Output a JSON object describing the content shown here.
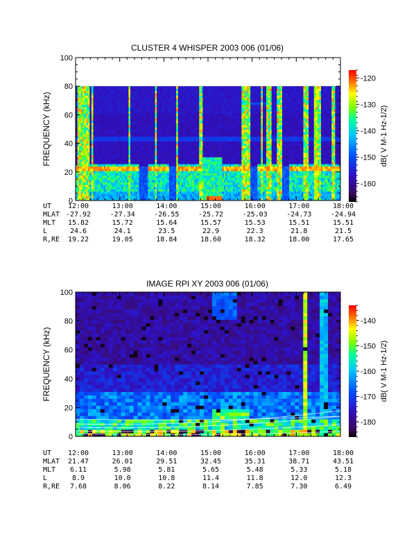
{
  "chart_data": [
    {
      "type": "heatmap",
      "title": "CLUSTER 4 WHISPER 2003 006 (01/06)",
      "ylabel": "FREQUENCY (kHz)",
      "ylim": [
        0,
        100
      ],
      "yticks": [
        "0",
        "20",
        "40",
        "60",
        "80",
        "100"
      ],
      "xticks": [
        "12:00",
        "13:00",
        "14:00",
        "15:00",
        "16:00",
        "17:00",
        "18:00"
      ],
      "data_top_khz": 80,
      "colorbar": {
        "label": "dB( V M-1 Hz-1/2)",
        "ticks": [
          "-120",
          "-130",
          "-140",
          "-150",
          "-160"
        ],
        "range": [
          -167,
          -117
        ]
      },
      "ephemeris": {
        "labels": [
          "UT",
          "MLAT",
          "MLT",
          "L",
          "R,RE"
        ],
        "rows": [
          [
            "12:00",
            "13:00",
            "14:00",
            "15:00",
            "16:00",
            "17:00",
            "18:00"
          ],
          [
            "-27.92",
            "-27.34",
            "-26.55",
            "-25.72",
            "-25.03",
            "-24.73",
            "-24.94"
          ],
          [
            "15.82",
            "15.72",
            "15.64",
            "15.57",
            "15.53",
            "15.51",
            "15.51"
          ],
          [
            "24.6",
            "24.1",
            "23.5",
            "22.9",
            "22.3",
            "21.8",
            "21.5"
          ],
          [
            "19.22",
            "19.05",
            "18.84",
            "18.60",
            "18.32",
            "18.00",
            "17.65"
          ]
        ]
      }
    },
    {
      "type": "heatmap",
      "title": "IMAGE RPI XY 2003 006 (01/06)",
      "ylabel": "FREQUENCY (kHz)",
      "ylim": [
        0,
        100
      ],
      "yticks": [
        "0",
        "20",
        "40",
        "60",
        "80",
        "100"
      ],
      "xticks": [
        "12:00",
        "13:00",
        "14:00",
        "15:00",
        "16:00",
        "17:00",
        "18:00"
      ],
      "colorbar": {
        "label": "dB( V M-1 Hz-1/2)",
        "ticks": [
          "-140",
          "-150",
          "-160",
          "-170",
          "-180"
        ],
        "range": [
          -186,
          -134
        ]
      },
      "ephemeris": {
        "labels": [
          "UT",
          "MLAT",
          "MLT",
          "L",
          "R,RE"
        ],
        "rows": [
          [
            "12:00",
            "13:00",
            "14:00",
            "15:00",
            "16:00",
            "17:00",
            "18:00"
          ],
          [
            "21.47",
            "26.01",
            "29.51",
            "32.45",
            "35.31",
            "38.71",
            "43.51"
          ],
          [
            "6.11",
            "5.98",
            "5.81",
            "5.65",
            "5.48",
            "5.33",
            "5.18"
          ],
          [
            "8.9",
            "10.0",
            "10.8",
            "11.4",
            "11.8",
            "12.0",
            "12.3"
          ],
          [
            "7.68",
            "8.06",
            "8.22",
            "8.14",
            "7.85",
            "7.30",
            "6.49"
          ]
        ]
      }
    }
  ]
}
